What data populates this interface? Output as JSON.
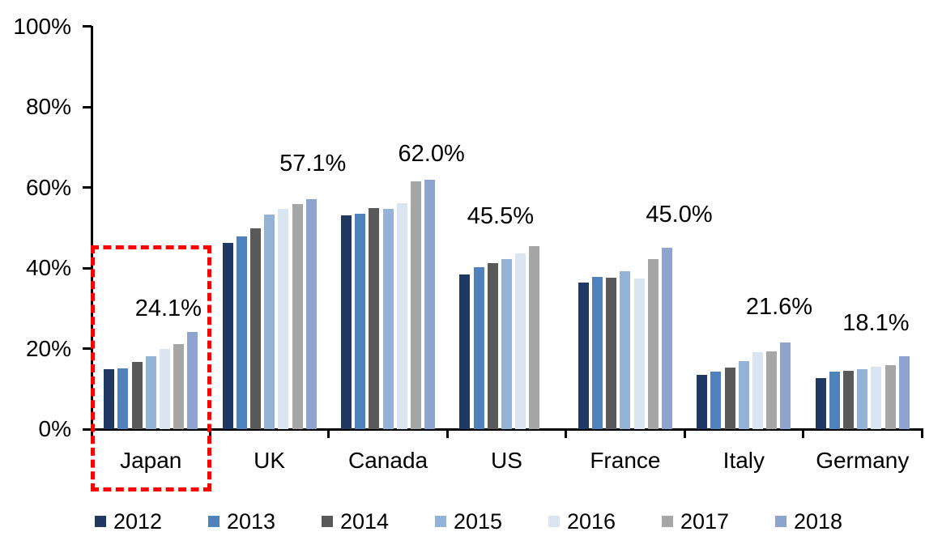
{
  "chart_data": {
    "type": "bar",
    "title": "",
    "categories": [
      "Japan",
      "UK",
      "Canada",
      "US",
      "France",
      "Italy",
      "Germany"
    ],
    "series": [
      {
        "name": "2012",
        "color": "#1f3864",
        "values": [
          14.8,
          46.3,
          53.0,
          38.3,
          36.4,
          13.5,
          12.7
        ]
      },
      {
        "name": "2013",
        "color": "#4f81bd",
        "values": [
          15.1,
          47.8,
          53.4,
          40.3,
          37.7,
          14.2,
          14.2
        ]
      },
      {
        "name": "2014",
        "color": "#595959",
        "values": [
          16.6,
          49.8,
          54.8,
          41.2,
          37.6,
          15.3,
          14.4
        ]
      },
      {
        "name": "2015",
        "color": "#95b3d7",
        "values": [
          18.1,
          53.2,
          54.6,
          42.3,
          39.2,
          16.9,
          14.9
        ]
      },
      {
        "name": "2016",
        "color": "#dbe5f1",
        "values": [
          20.0,
          54.7,
          56.1,
          43.7,
          37.3,
          19.0,
          15.4
        ]
      },
      {
        "name": "2017",
        "color": "#a6a6a6",
        "values": [
          21.1,
          55.8,
          61.6,
          45.5,
          42.2,
          19.3,
          15.9
        ]
      },
      {
        "name": "2018",
        "color": "#8ea3cd",
        "values": [
          24.1,
          57.1,
          62.0,
          null,
          45.0,
          21.6,
          18.1
        ]
      }
    ],
    "data_labels": [
      {
        "category": "Japan",
        "text": "24.1%"
      },
      {
        "category": "UK",
        "text": "57.1%"
      },
      {
        "category": "Canada",
        "text": "62.0%"
      },
      {
        "category": "US",
        "text": "45.5%"
      },
      {
        "category": "France",
        "text": "45.0%"
      },
      {
        "category": "Italy",
        "text": "21.6%"
      },
      {
        "category": "Germany",
        "text": "18.1%"
      }
    ],
    "y_axis": {
      "min": 0,
      "max": 100,
      "step": 20,
      "tick_labels": [
        "0%",
        "20%",
        "40%",
        "60%",
        "80%",
        "100%"
      ]
    },
    "x_axis": {
      "grid": false
    },
    "legend_position": "bottom",
    "highlight": {
      "category": "Japan",
      "shape": "dashed-rectangle",
      "color": "#ff0000"
    }
  },
  "legend": {
    "items": [
      {
        "label": "2012",
        "color": "#1f3864"
      },
      {
        "label": "2013",
        "color": "#4f81bd"
      },
      {
        "label": "2014",
        "color": "#595959"
      },
      {
        "label": "2015",
        "color": "#95b3d7"
      },
      {
        "label": "2016",
        "color": "#dbe5f1"
      },
      {
        "label": "2017",
        "color": "#a6a6a6"
      },
      {
        "label": "2018",
        "color": "#8ea3cd"
      }
    ]
  }
}
